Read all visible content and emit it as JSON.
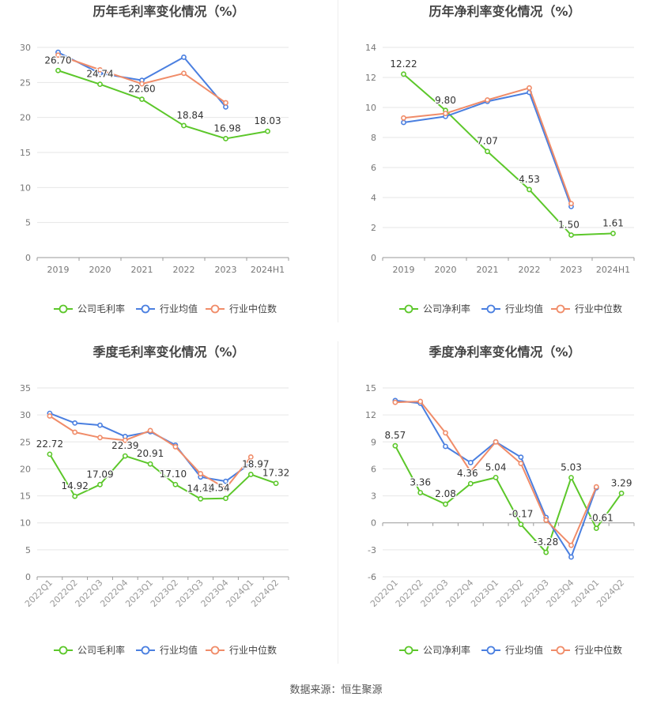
{
  "colors": {
    "company": "#5cc72a",
    "avg": "#4a7fe0",
    "median": "#f08c69",
    "grid": "#e6e6e6",
    "axis_text": "#777777",
    "title": "#444444"
  },
  "legend_icon": "circle-line-marker",
  "source_text": "数据来源：恒生聚源",
  "charts": [
    {
      "type": "line",
      "title": "历年毛利率变化情况（%）",
      "categories": [
        "2019",
        "2020",
        "2021",
        "2022",
        "2023",
        "2024H1"
      ],
      "ylim": [
        0,
        30
      ],
      "yticks": [
        0,
        5,
        10,
        15,
        20,
        25,
        30
      ],
      "grid": true,
      "legend_position": "bottom",
      "series": [
        {
          "name": "公司毛利率",
          "color": "#5cc72a",
          "values": [
            26.7,
            24.74,
            22.6,
            18.84,
            16.98,
            18.03
          ],
          "labels": [
            "26.70",
            "24.74",
            "22.60",
            "18.84",
            "16.98",
            "18.03"
          ]
        },
        {
          "name": "行业均值",
          "color": "#4a7fe0",
          "values": [
            29.3,
            26.3,
            25.3,
            28.6,
            21.5,
            null
          ]
        },
        {
          "name": "行业中位数",
          "color": "#f08c69",
          "values": [
            28.9,
            26.8,
            24.8,
            26.3,
            22.1,
            null
          ]
        }
      ]
    },
    {
      "type": "line",
      "title": "历年净利率变化情况（%）",
      "categories": [
        "2019",
        "2020",
        "2021",
        "2022",
        "2023",
        "2024H1"
      ],
      "ylim": [
        0,
        14
      ],
      "yticks": [
        0,
        2,
        4,
        6,
        8,
        10,
        12,
        14
      ],
      "grid": true,
      "legend_position": "bottom",
      "series": [
        {
          "name": "公司净利率",
          "color": "#5cc72a",
          "values": [
            12.22,
            9.8,
            7.07,
            4.53,
            1.5,
            1.61
          ],
          "labels": [
            "12.22",
            "9.80",
            "7.07",
            "4.53",
            "1.50",
            "1.61"
          ]
        },
        {
          "name": "行业均值",
          "color": "#4a7fe0",
          "values": [
            9.0,
            9.4,
            10.4,
            11.0,
            3.4,
            null
          ]
        },
        {
          "name": "行业中位数",
          "color": "#f08c69",
          "values": [
            9.3,
            9.6,
            10.5,
            11.3,
            3.6,
            null
          ]
        }
      ]
    },
    {
      "type": "line",
      "title": "季度毛利率变化情况（%）",
      "categories": [
        "2022Q1",
        "2022Q2",
        "2022Q3",
        "2022Q4",
        "2023Q1",
        "2023Q2",
        "2023Q3",
        "2023Q4",
        "2024Q1",
        "2024Q2"
      ],
      "ylim": [
        0,
        35
      ],
      "yticks": [
        0,
        5,
        10,
        15,
        20,
        25,
        30,
        35
      ],
      "grid": true,
      "legend_position": "bottom",
      "series": [
        {
          "name": "公司毛利率",
          "color": "#5cc72a",
          "values": [
            22.72,
            14.92,
            17.09,
            22.39,
            20.91,
            17.1,
            14.45,
            14.54,
            18.97,
            17.32
          ],
          "labels": [
            "22.72",
            "14.92",
            "17.09",
            "22.39",
            "20.91",
            "17.10",
            "14.45",
            "14.54",
            "18.97",
            "17.32"
          ]
        },
        {
          "name": "行业均值",
          "color": "#4a7fe0",
          "values": [
            30.3,
            28.5,
            28.1,
            26.0,
            26.9,
            24.4,
            18.5,
            17.7,
            21.1,
            null
          ]
        },
        {
          "name": "行业中位数",
          "color": "#f08c69",
          "values": [
            29.8,
            26.8,
            25.8,
            25.3,
            27.1,
            24.1,
            19.1,
            16.4,
            22.2,
            null
          ]
        }
      ]
    },
    {
      "type": "line",
      "title": "季度净利率变化情况（%）",
      "categories": [
        "2022Q1",
        "2022Q2",
        "2022Q3",
        "2022Q4",
        "2023Q1",
        "2023Q2",
        "2023Q3",
        "2023Q4",
        "2024Q1",
        "2024Q2"
      ],
      "ylim": [
        -6,
        15
      ],
      "yticks": [
        -6,
        -3,
        0,
        3,
        6,
        9,
        12,
        15
      ],
      "grid": true,
      "legend_position": "bottom",
      "series": [
        {
          "name": "公司净利率",
          "color": "#5cc72a",
          "values": [
            8.57,
            3.36,
            2.08,
            4.36,
            5.04,
            -0.17,
            -3.28,
            5.03,
            -0.61,
            3.29
          ],
          "labels": [
            "8.57",
            "3.36",
            "2.08",
            "4.36",
            "5.04",
            "-0.17",
            "-3.28",
            "5.03",
            "-0.61",
            "3.29"
          ]
        },
        {
          "name": "行业均值",
          "color": "#4a7fe0",
          "values": [
            13.6,
            13.3,
            8.5,
            6.7,
            9.0,
            7.3,
            0.6,
            -3.8,
            3.9,
            null
          ]
        },
        {
          "name": "行业中位数",
          "color": "#f08c69",
          "values": [
            13.4,
            13.5,
            10.0,
            5.7,
            9.0,
            6.6,
            0.3,
            -2.5,
            4.0,
            null
          ]
        }
      ]
    }
  ]
}
